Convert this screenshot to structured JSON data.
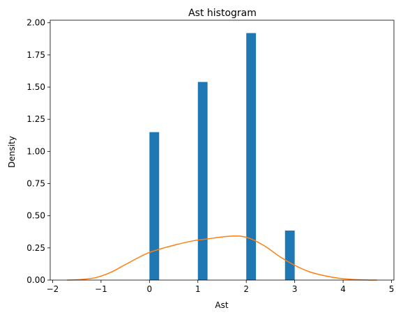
{
  "chart_data": {
    "type": "bar",
    "title": "Ast histogram",
    "xlabel": "Ast",
    "ylabel": "Density",
    "xlim": [
      -2.05,
      5.05
    ],
    "ylim": [
      0,
      2.02
    ],
    "xticks": [
      -2,
      -1,
      0,
      1,
      2,
      3,
      4,
      5
    ],
    "yticks": [
      0.0,
      0.25,
      0.5,
      0.75,
      1.0,
      1.25,
      1.5,
      1.75,
      2.0
    ],
    "yticklabels": [
      "0.00",
      "0.25",
      "0.50",
      "0.75",
      "1.00",
      "1.25",
      "1.50",
      "1.75",
      "2.00"
    ],
    "grid": false,
    "series": [
      {
        "type": "histogram",
        "color": "#1f77b4",
        "bin_width": 0.2,
        "bins": [
          {
            "x0": 0.0,
            "x1": 0.2,
            "value": 1.15
          },
          {
            "x0": 1.0,
            "x1": 1.2,
            "value": 1.54
          },
          {
            "x0": 2.0,
            "x1": 2.2,
            "value": 1.92
          },
          {
            "x0": 2.8,
            "x1": 3.0,
            "value": 0.385
          }
        ]
      },
      {
        "type": "line",
        "color": "#ff7f0e",
        "points": [
          [
            -1.7,
            0.0
          ],
          [
            -1.4,
            0.005
          ],
          [
            -1.1,
            0.02
          ],
          [
            -0.8,
            0.06
          ],
          [
            -0.5,
            0.12
          ],
          [
            -0.2,
            0.18
          ],
          [
            0.0,
            0.215
          ],
          [
            0.3,
            0.25
          ],
          [
            0.6,
            0.28
          ],
          [
            0.9,
            0.305
          ],
          [
            1.2,
            0.32
          ],
          [
            1.5,
            0.335
          ],
          [
            1.7,
            0.342
          ],
          [
            1.9,
            0.34
          ],
          [
            2.1,
            0.32
          ],
          [
            2.4,
            0.26
          ],
          [
            2.7,
            0.18
          ],
          [
            3.0,
            0.115
          ],
          [
            3.3,
            0.065
          ],
          [
            3.6,
            0.035
          ],
          [
            3.9,
            0.015
          ],
          [
            4.2,
            0.005
          ],
          [
            4.5,
            0.001
          ],
          [
            4.7,
            0.0
          ]
        ]
      }
    ]
  }
}
